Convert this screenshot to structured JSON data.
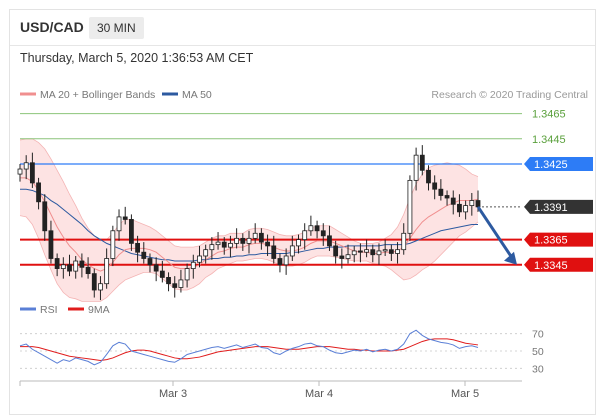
{
  "header": {
    "symbol": "USD/CAD",
    "timeframe": "30 MIN",
    "datetime": "Thursday, March 5, 2020 1:36:53 AM CET"
  },
  "legend": {
    "items": [
      {
        "label": "MA 20 + Bollinger Bands",
        "color": "#f08f8f"
      },
      {
        "label": "MA 50",
        "color": "#2d5aa0"
      }
    ],
    "credit": "Research © 2020 Trading Central"
  },
  "rsi_legend": {
    "items": [
      {
        "label": "RSI",
        "color": "#5a7fd6"
      },
      {
        "label": "9MA",
        "color": "#e01c1c"
      }
    ]
  },
  "colors": {
    "resistance_green": "#8cc47a",
    "resistance_blue": "#2d7cf6",
    "support_red": "#e01010",
    "current_price": "#333333",
    "bollinger_fill": "#fddede"
  },
  "chart_data": [
    {
      "type": "candlestick",
      "title": "",
      "x_labels": [
        "Mar 3",
        "Mar 4",
        "Mar 5"
      ],
      "ylim": [
        1.3325,
        1.3475
      ],
      "levels": [
        {
          "label": "1.3465",
          "value": 1.3465,
          "role": "resistance",
          "color": "#8cc47a",
          "style": "text"
        },
        {
          "label": "1.3445",
          "value": 1.3445,
          "role": "resistance",
          "color": "#8cc47a",
          "style": "text"
        },
        {
          "label": "1.3425",
          "value": 1.3425,
          "role": "pivot",
          "color": "#2d7cf6",
          "style": "tag"
        },
        {
          "label": "1.3391",
          "value": 1.3391,
          "role": "current",
          "color": "#333333",
          "style": "tag"
        },
        {
          "label": "1.3365",
          "value": 1.3365,
          "role": "support",
          "color": "#e01010",
          "style": "tag"
        },
        {
          "label": "1.3345",
          "value": 1.3345,
          "role": "support",
          "color": "#e01010",
          "style": "tag"
        }
      ],
      "close_series": [
        1.3421,
        1.3426,
        1.341,
        1.3395,
        1.3372,
        1.335,
        1.3342,
        1.3345,
        1.334,
        1.3348,
        1.3343,
        1.3338,
        1.3325,
        1.333,
        1.335,
        1.3372,
        1.3383,
        1.3381,
        1.3362,
        1.3355,
        1.335,
        1.3345,
        1.334,
        1.3335,
        1.333,
        1.3327,
        1.3333,
        1.3342,
        1.3347,
        1.3352,
        1.3357,
        1.3361,
        1.3363,
        1.3359,
        1.3362,
        1.3366,
        1.3362,
        1.3366,
        1.337,
        1.3363,
        1.336,
        1.335,
        1.3345,
        1.3352,
        1.336,
        1.3365,
        1.3372,
        1.3376,
        1.3372,
        1.3368,
        1.336,
        1.3352,
        1.335,
        1.3353,
        1.3356,
        1.3355,
        1.3357,
        1.3353,
        1.3356,
        1.3357,
        1.3354,
        1.3357,
        1.337,
        1.3412,
        1.3432,
        1.342,
        1.341,
        1.3405,
        1.34,
        1.3398,
        1.3393,
        1.3387,
        1.3392,
        1.3396,
        1.3391
      ],
      "ma20_series": [
        1.3414,
        1.3414,
        1.3411,
        1.3404,
        1.3395,
        1.3385,
        1.3375,
        1.3367,
        1.336,
        1.3355,
        1.3349,
        1.3345,
        1.3342,
        1.334,
        1.3342,
        1.3347,
        1.3353,
        1.3357,
        1.3358,
        1.3358,
        1.3358,
        1.3357,
        1.3355,
        1.3351,
        1.3347,
        1.3343,
        1.3342,
        1.3342,
        1.3343,
        1.3345,
        1.3349,
        1.3352,
        1.3355,
        1.3356,
        1.3358,
        1.3359,
        1.3359,
        1.3361,
        1.3362,
        1.3362,
        1.3361,
        1.3359,
        1.3357,
        1.3356,
        1.3356,
        1.3357,
        1.3359,
        1.3362,
        1.3364,
        1.3364,
        1.3364,
        1.3362,
        1.336,
        1.3358,
        1.3356,
        1.3355,
        1.3355,
        1.3354,
        1.3354,
        1.3355,
        1.3355,
        1.3356,
        1.3359,
        1.3366,
        1.3373,
        1.3379,
        1.3383,
        1.3386,
        1.3389,
        1.3392,
        1.3394,
        1.3396,
        1.3396,
        1.3396,
        1.3397
      ],
      "ma50_series": [
        1.3405,
        1.3405,
        1.3404,
        1.3402,
        1.34,
        1.3396,
        1.3393,
        1.3389,
        1.3385,
        1.3381,
        1.3377,
        1.3372,
        1.3368,
        1.3365,
        1.3362,
        1.336,
        1.3358,
        1.3356,
        1.3354,
        1.3353,
        1.3352,
        1.3351,
        1.335,
        1.3349,
        1.3349,
        1.3348,
        1.3348,
        1.3348,
        1.3348,
        1.3349,
        1.3349,
        1.335,
        1.335,
        1.3351,
        1.3351,
        1.3352,
        1.3352,
        1.3353,
        1.3353,
        1.3354,
        1.3354,
        1.3354,
        1.3354,
        1.3354,
        1.3355,
        1.3355,
        1.3356,
        1.3357,
        1.3358,
        1.3358,
        1.3359,
        1.3359,
        1.3359,
        1.336,
        1.336,
        1.336,
        1.336,
        1.336,
        1.336,
        1.3361,
        1.3361,
        1.3361,
        1.3361,
        1.3362,
        1.3364,
        1.3366,
        1.3368,
        1.337,
        1.3372,
        1.3373,
        1.3374,
        1.3375,
        1.3376,
        1.3377,
        1.3377
      ],
      "band_width": [
        0.003,
        0.0031,
        0.0034,
        0.0038,
        0.0042,
        0.0044,
        0.0045,
        0.0044,
        0.0041,
        0.0037,
        0.0033,
        0.0029,
        0.0026,
        0.0024,
        0.0023,
        0.0023,
        0.0024,
        0.0024,
        0.0023,
        0.0021,
        0.0019,
        0.0018,
        0.0017,
        0.0017,
        0.0017,
        0.0017,
        0.0017,
        0.0017,
        0.0016,
        0.0015,
        0.0014,
        0.0014,
        0.0013,
        0.0012,
        0.0012,
        0.0011,
        0.0011,
        0.0012,
        0.0012,
        0.0012,
        0.0012,
        0.0012,
        0.0012,
        0.0012,
        0.0012,
        0.0012,
        0.0012,
        0.0012,
        0.0012,
        0.0012,
        0.0012,
        0.0011,
        0.001,
        0.0009,
        0.0008,
        0.0007,
        0.0007,
        0.0008,
        0.0009,
        0.0011,
        0.0014,
        0.0019,
        0.0026,
        0.0032,
        0.0036,
        0.0038,
        0.0039,
        0.0038,
        0.0036,
        0.0034,
        0.0031,
        0.0028,
        0.0025,
        0.0021,
        0.0018
      ],
      "forecast_arrow": {
        "from_value": 1.3391,
        "to_value": 1.3345,
        "color": "#2d5aa0"
      }
    },
    {
      "type": "line",
      "title": "",
      "ylim": [
        20,
        80
      ],
      "y_ticks": [
        "70",
        "50",
        "30"
      ],
      "series": [
        {
          "name": "RSI",
          "color": "#5a7fd6",
          "values": [
            56,
            58,
            52,
            48,
            44,
            40,
            36,
            40,
            38,
            42,
            40,
            38,
            34,
            37,
            46,
            56,
            60,
            58,
            50,
            48,
            46,
            44,
            42,
            40,
            38,
            37,
            41,
            46,
            48,
            50,
            52,
            54,
            55,
            53,
            55,
            57,
            54,
            56,
            58,
            54,
            53,
            48,
            46,
            50,
            53,
            55,
            58,
            59,
            56,
            55,
            51,
            48,
            47,
            49,
            51,
            50,
            52,
            49,
            51,
            52,
            50,
            52,
            58,
            70,
            74,
            68,
            64,
            62,
            60,
            59,
            57,
            53,
            55,
            56,
            54
          ]
        },
        {
          "name": "9MA",
          "color": "#e01c1c",
          "values": [
            55,
            55,
            55,
            54,
            52,
            50,
            48,
            46,
            44,
            43,
            42,
            41,
            40,
            39,
            40,
            42,
            45,
            48,
            50,
            51,
            51,
            50,
            48,
            46,
            44,
            42,
            41,
            41,
            42,
            43,
            45,
            47,
            49,
            50,
            51,
            52,
            53,
            54,
            55,
            55,
            55,
            54,
            53,
            52,
            52,
            52,
            53,
            54,
            55,
            55,
            55,
            54,
            53,
            52,
            52,
            51,
            51,
            50,
            50,
            50,
            50,
            51,
            52,
            55,
            58,
            61,
            63,
            64,
            64,
            64,
            63,
            61,
            59,
            58,
            57
          ]
        }
      ]
    }
  ]
}
